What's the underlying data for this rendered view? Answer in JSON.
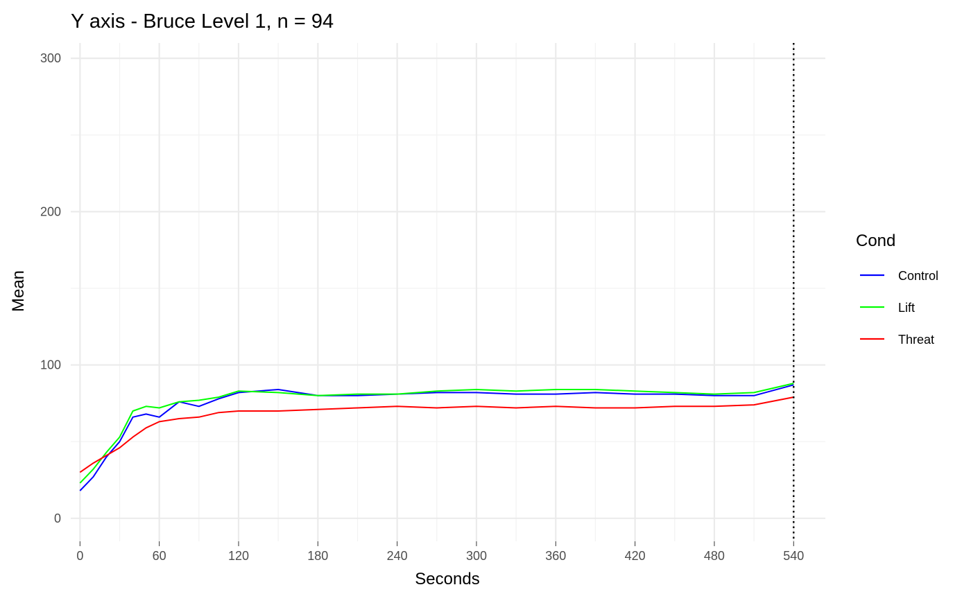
{
  "chart_data": {
    "type": "line",
    "title": "Y axis - Bruce Level 1, n =  94",
    "xlabel": "Seconds",
    "ylabel": "Mean",
    "xlim": [
      -7,
      564
    ],
    "ylim": [
      -15,
      310
    ],
    "x_ticks": [
      0,
      60,
      120,
      180,
      240,
      300,
      360,
      420,
      480,
      540
    ],
    "x_tick_labels": [
      "0",
      "60",
      "120",
      "180",
      "240",
      "300",
      "360",
      "420",
      "480",
      "540"
    ],
    "y_ticks": [
      0,
      100,
      200,
      300
    ],
    "y_tick_labels": [
      "0",
      "100",
      "200",
      "300"
    ],
    "grid": true,
    "legend": {
      "title": "Cond",
      "position": "right"
    },
    "vline": {
      "x": 540,
      "style": "dotted",
      "color": "#000000"
    },
    "series": [
      {
        "name": "Control",
        "color": "#0000ff",
        "values": [
          [
            0,
            18
          ],
          [
            10,
            27
          ],
          [
            20,
            40
          ],
          [
            30,
            50
          ],
          [
            40,
            66
          ],
          [
            50,
            68
          ],
          [
            60,
            66
          ],
          [
            75,
            76
          ],
          [
            90,
            73
          ],
          [
            105,
            78
          ],
          [
            120,
            82
          ],
          [
            150,
            84
          ],
          [
            180,
            80
          ],
          [
            210,
            80
          ],
          [
            240,
            81
          ],
          [
            270,
            82
          ],
          [
            300,
            82
          ],
          [
            330,
            81
          ],
          [
            360,
            81
          ],
          [
            390,
            82
          ],
          [
            420,
            81
          ],
          [
            450,
            81
          ],
          [
            480,
            80
          ],
          [
            510,
            80
          ],
          [
            540,
            87
          ]
        ]
      },
      {
        "name": "Lift",
        "color": "#00ff00",
        "values": [
          [
            0,
            23
          ],
          [
            10,
            32
          ],
          [
            20,
            43
          ],
          [
            30,
            53
          ],
          [
            40,
            70
          ],
          [
            50,
            73
          ],
          [
            60,
            72
          ],
          [
            75,
            76
          ],
          [
            90,
            77
          ],
          [
            105,
            79
          ],
          [
            120,
            83
          ],
          [
            150,
            82
          ],
          [
            180,
            80
          ],
          [
            210,
            81
          ],
          [
            240,
            81
          ],
          [
            270,
            83
          ],
          [
            300,
            84
          ],
          [
            330,
            83
          ],
          [
            360,
            84
          ],
          [
            390,
            84
          ],
          [
            420,
            83
          ],
          [
            450,
            82
          ],
          [
            480,
            81
          ],
          [
            510,
            82
          ],
          [
            540,
            88
          ]
        ]
      },
      {
        "name": "Threat",
        "color": "#ff0000",
        "values": [
          [
            0,
            30
          ],
          [
            10,
            36
          ],
          [
            20,
            41
          ],
          [
            30,
            46
          ],
          [
            40,
            53
          ],
          [
            50,
            59
          ],
          [
            60,
            63
          ],
          [
            75,
            65
          ],
          [
            90,
            66
          ],
          [
            105,
            69
          ],
          [
            120,
            70
          ],
          [
            150,
            70
          ],
          [
            180,
            71
          ],
          [
            210,
            72
          ],
          [
            240,
            73
          ],
          [
            270,
            72
          ],
          [
            300,
            73
          ],
          [
            330,
            72
          ],
          [
            360,
            73
          ],
          [
            390,
            72
          ],
          [
            420,
            72
          ],
          [
            450,
            73
          ],
          [
            480,
            73
          ],
          [
            510,
            74
          ],
          [
            540,
            79
          ]
        ]
      }
    ]
  }
}
